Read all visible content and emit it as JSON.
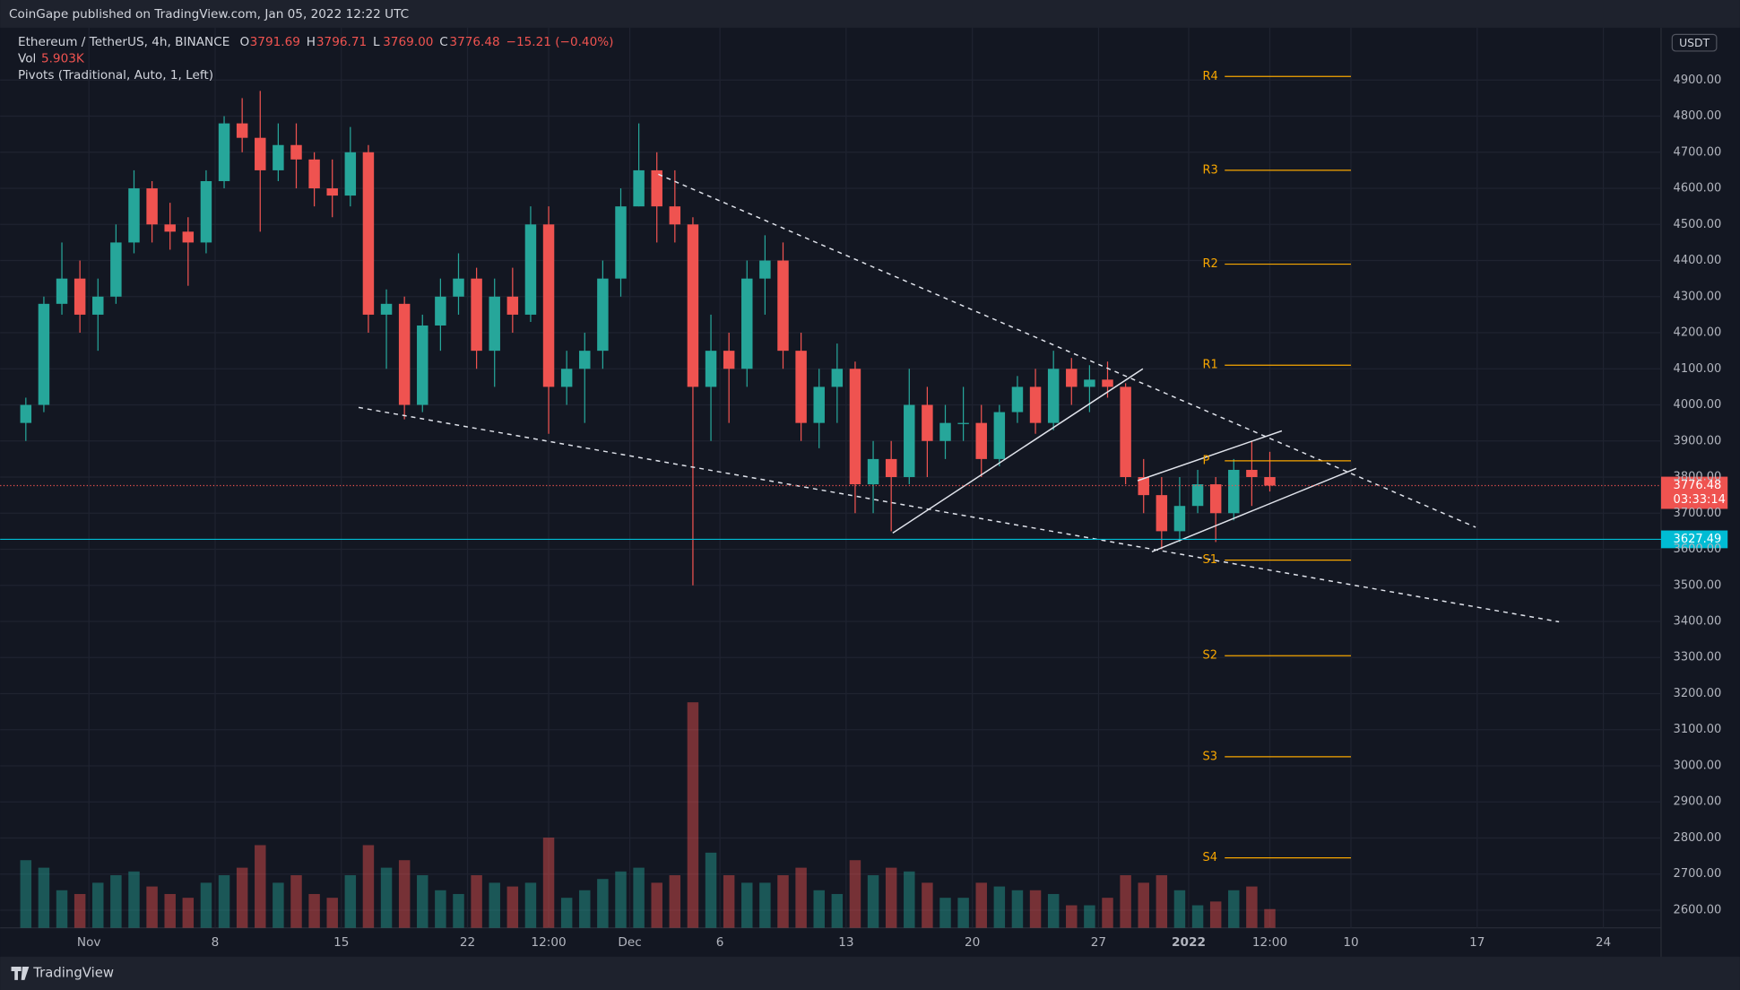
{
  "publisher": "CoinGape published on TradingView.com, Jan 05, 2022 12:22 UTC",
  "brand": "TradingView",
  "legend": {
    "symbol": "Ethereum / TetherUS, 4h, BINANCE",
    "ohlc": [
      {
        "key": "O",
        "value": "3791.69"
      },
      {
        "key": "H",
        "value": "3796.71"
      },
      {
        "key": "L",
        "value": "3769.00"
      },
      {
        "key": "C",
        "value": "3776.48"
      }
    ],
    "change": "−15.21 (−0.40%)",
    "vol_label": "Vol",
    "vol_value": "5.903K",
    "pivots": "Pivots (Traditional, Auto, 1, Left)"
  },
  "currency": "USDT",
  "chart_data": {
    "type": "candlestick",
    "x": [
      "2021-10-28",
      "2021-10-29",
      "2021-10-30",
      "2021-10-31",
      "2021-11-01",
      "2021-11-02",
      "2021-11-03",
      "2021-11-04",
      "2021-11-05",
      "2021-11-06",
      "2021-11-07",
      "2021-11-08",
      "2021-11-09",
      "2021-11-10",
      "2021-11-11",
      "2021-11-12",
      "2021-11-13",
      "2021-11-14",
      "2021-11-15",
      "2021-11-16",
      "2021-11-17",
      "2021-11-18",
      "2021-11-19",
      "2021-11-20",
      "2021-11-21",
      "2021-11-22",
      "2021-11-23",
      "2021-11-24",
      "2021-11-25",
      "2021-11-26",
      "2021-11-27",
      "2021-11-28",
      "2021-11-29",
      "2021-11-30",
      "2021-12-01",
      "2021-12-02",
      "2021-12-03",
      "2021-12-04",
      "2021-12-05",
      "2021-12-06",
      "2021-12-07",
      "2021-12-08",
      "2021-12-09",
      "2021-12-10",
      "2021-12-11",
      "2021-12-12",
      "2021-12-13",
      "2021-12-14",
      "2021-12-15",
      "2021-12-16",
      "2021-12-17",
      "2021-12-18",
      "2021-12-19",
      "2021-12-20",
      "2021-12-21",
      "2021-12-22",
      "2021-12-23",
      "2021-12-24",
      "2021-12-25",
      "2021-12-26",
      "2021-12-27",
      "2021-12-28",
      "2021-12-29",
      "2021-12-30",
      "2021-12-31",
      "2022-01-01",
      "2022-01-02",
      "2022-01-03",
      "2022-01-04",
      "2022-01-05"
    ],
    "open": [
      3950,
      4000,
      4280,
      4350,
      4250,
      4300,
      4450,
      4600,
      4500,
      4480,
      4450,
      4620,
      4780,
      4740,
      4650,
      4720,
      4680,
      4600,
      4580,
      4700,
      4250,
      4280,
      4000,
      4220,
      4300,
      4350,
      4150,
      4300,
      4250,
      4500,
      4050,
      4100,
      4150,
      4350,
      4550,
      4650,
      4550,
      4500,
      4050,
      4150,
      4100,
      4350,
      4400,
      4150,
      3950,
      4050,
      4100,
      3780,
      3850,
      3800,
      4000,
      3900,
      3950,
      3950,
      3850,
      3980,
      4050,
      3950,
      4100,
      4050,
      4070,
      4050,
      3800,
      3750,
      3650,
      3720,
      3780,
      3700,
      3820,
      3800
    ],
    "high": [
      4020,
      4300,
      4450,
      4400,
      4350,
      4500,
      4650,
      4620,
      4560,
      4520,
      4650,
      4800,
      4850,
      4870,
      4780,
      4780,
      4700,
      4680,
      4770,
      4720,
      4320,
      4300,
      4250,
      4350,
      4420,
      4380,
      4350,
      4380,
      4550,
      4550,
      4150,
      4200,
      4400,
      4600,
      4780,
      4700,
      4650,
      4520,
      4250,
      4200,
      4400,
      4470,
      4450,
      4200,
      4100,
      4170,
      4120,
      3900,
      3900,
      4100,
      4050,
      4000,
      4050,
      4000,
      4000,
      4080,
      4100,
      4150,
      4130,
      4110,
      4120,
      4060,
      3850,
      3800,
      3800,
      3820,
      3800,
      3850,
      3900,
      3870
    ],
    "low": [
      3900,
      3980,
      4250,
      4200,
      4150,
      4280,
      4420,
      4450,
      4430,
      4330,
      4420,
      4600,
      4700,
      4480,
      4620,
      4600,
      4550,
      4520,
      4550,
      4200,
      4100,
      3960,
      3980,
      4150,
      4250,
      4100,
      4050,
      4200,
      4230,
      3920,
      4000,
      3950,
      4100,
      4300,
      4550,
      4450,
      4450,
      3500,
      3900,
      3950,
      4050,
      4250,
      4100,
      3900,
      3880,
      3950,
      3700,
      3700,
      3650,
      3780,
      3800,
      3850,
      3900,
      3800,
      3830,
      3950,
      3920,
      3930,
      4000,
      3980,
      4020,
      3780,
      3700,
      3600,
      3620,
      3700,
      3620,
      3680,
      3720,
      3760
    ],
    "close": [
      4000,
      4280,
      4350,
      4250,
      4300,
      4450,
      4600,
      4500,
      4480,
      4450,
      4620,
      4780,
      4740,
      4650,
      4720,
      4680,
      4600,
      4580,
      4700,
      4250,
      4280,
      4000,
      4220,
      4300,
      4350,
      4150,
      4300,
      4250,
      4500,
      4050,
      4100,
      4150,
      4350,
      4550,
      4650,
      4550,
      4500,
      4050,
      4150,
      4100,
      4350,
      4400,
      4150,
      3950,
      4050,
      4100,
      3780,
      3850,
      3800,
      4000,
      3900,
      3950,
      3950,
      3850,
      3980,
      4050,
      3950,
      4100,
      4050,
      4070,
      4050,
      3800,
      3750,
      3650,
      3720,
      3780,
      3700,
      3820,
      3800,
      3776.48
    ],
    "volume": [
      18,
      16,
      10,
      9,
      12,
      14,
      15,
      11,
      9,
      8,
      12,
      14,
      16,
      22,
      12,
      14,
      9,
      8,
      14,
      22,
      16,
      18,
      14,
      10,
      9,
      14,
      12,
      11,
      12,
      24,
      8,
      10,
      13,
      15,
      16,
      12,
      14,
      60,
      20,
      14,
      12,
      12,
      14,
      16,
      10,
      9,
      18,
      14,
      16,
      15,
      12,
      8,
      8,
      12,
      11,
      10,
      10,
      9,
      6,
      6,
      8,
      14,
      12,
      14,
      10,
      6,
      7,
      10,
      11,
      5
    ],
    "volume_ylim": [
      0,
      62
    ],
    "colors": {
      "up": "#26a69a",
      "down": "#ef5350"
    },
    "xlim": [
      "2021-10-27T16:35",
      "2022-01-27T04:50"
    ],
    "xticks": [
      {
        "value": "2021-11-01",
        "label": "Nov"
      },
      {
        "value": "2021-11-08",
        "label": "8"
      },
      {
        "value": "2021-11-15",
        "label": "15"
      },
      {
        "value": "2021-11-22",
        "label": "22"
      },
      {
        "value": "2021-11-26T12:00",
        "label": "12:00"
      },
      {
        "value": "2021-12-01",
        "label": "Dec"
      },
      {
        "value": "2021-12-06",
        "label": "6"
      },
      {
        "value": "2021-12-13",
        "label": "13"
      },
      {
        "value": "2021-12-20",
        "label": "20"
      },
      {
        "value": "2021-12-27",
        "label": "27"
      },
      {
        "value": "2022-01-01",
        "label": "2022"
      },
      {
        "value": "2022-01-05T12:00",
        "label": "12:00"
      },
      {
        "value": "2022-01-10",
        "label": "10"
      },
      {
        "value": "2022-01-17",
        "label": "17"
      },
      {
        "value": "2022-01-24",
        "label": "24"
      }
    ],
    "ylim": [
      2551,
      5045
    ],
    "yticks": [
      {
        "value": 2600,
        "label": "2600.00"
      },
      {
        "value": 2700,
        "label": "2700.00"
      },
      {
        "value": 2800,
        "label": "2800.00"
      },
      {
        "value": 2900,
        "label": "2900.00"
      },
      {
        "value": 3000,
        "label": "3000.00"
      },
      {
        "value": 3100,
        "label": "3100.00"
      },
      {
        "value": 3200,
        "label": "3200.00"
      },
      {
        "value": 3300,
        "label": "3300.00"
      },
      {
        "value": 3400,
        "label": "3400.00"
      },
      {
        "value": 3500,
        "label": "3500.00"
      },
      {
        "value": 3600,
        "label": "3600.00"
      },
      {
        "value": 3700,
        "label": "3700.00"
      },
      {
        "value": 3800,
        "label": "3800.00"
      },
      {
        "value": 3900,
        "label": "3900.00"
      },
      {
        "value": 4000,
        "label": "4000.00"
      },
      {
        "value": 4100,
        "label": "4100.00"
      },
      {
        "value": 4200,
        "label": "4200.00"
      },
      {
        "value": 4300,
        "label": "4300.00"
      },
      {
        "value": 4400,
        "label": "4400.00"
      },
      {
        "value": 4500,
        "label": "4500.00"
      },
      {
        "value": 4600,
        "label": "4600.00"
      },
      {
        "value": 4700,
        "label": "4700.00"
      },
      {
        "value": 4800,
        "label": "4800.00"
      },
      {
        "value": 4900,
        "label": "4900.00"
      }
    ],
    "grid": true,
    "pivots": {
      "color": "#f7a600",
      "start": "2022-01-03",
      "end": "2022-01-10",
      "labels": [
        "R4",
        "R3",
        "R2",
        "R1",
        "P",
        "S1",
        "S2",
        "S3",
        "S4"
      ],
      "values": [
        4910,
        4650,
        4390,
        4110,
        3845,
        3570,
        3305,
        3025,
        2745
      ]
    },
    "trendlines": [
      {
        "style": "dashed",
        "x": [
          "2021-12-02T14:00",
          "2022-01-16T22:00"
        ],
        "y": [
          4639,
          3661
        ]
      },
      {
        "style": "dashed",
        "x": [
          "2021-11-15T23:00",
          "2022-01-21T13:00"
        ],
        "y": [
          3993,
          3399
        ]
      },
      {
        "style": "solid",
        "x": [
          "2021-12-15T14:00",
          "2021-12-29T11:00"
        ],
        "y": [
          3645,
          4100
        ]
      },
      {
        "style": "solid",
        "x": [
          "2021-12-29T23:00",
          "2022-01-10T07:00"
        ],
        "y": [
          3593,
          3824
        ]
      },
      {
        "style": "solid",
        "x": [
          "2021-12-29T04:00",
          "2022-01-06T04:00"
        ],
        "y": [
          3790,
          3928
        ]
      }
    ],
    "last_price": {
      "value": 3776.48,
      "label": "3776.48",
      "countdown": "03:33:14",
      "color": "#ef5350"
    },
    "support_line": {
      "value": 3627.49,
      "label": "3627.49",
      "color": "#00bcd4"
    }
  }
}
